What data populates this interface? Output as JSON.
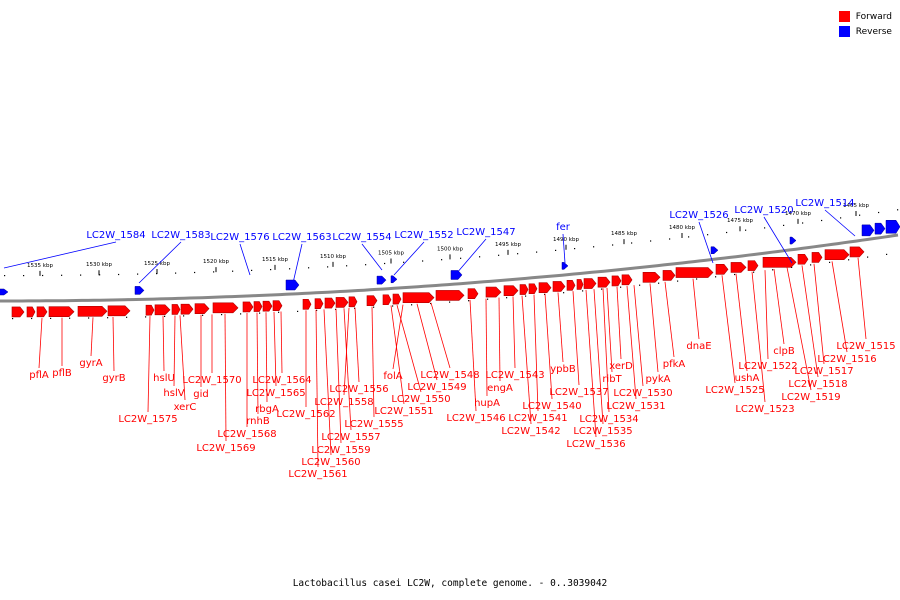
{
  "legend": {
    "forward_label": "Forward",
    "reverse_label": "Reverse",
    "forward_color": "#ff0000",
    "reverse_color": "#0000ff"
  },
  "caption": "Lactobacillus casei LC2W, complete genome. - 0..3039042",
  "ruler_ticks": [
    "1535 kbp",
    "1530 kbp",
    "1525 kbp",
    "1520 kbp",
    "1515 kbp",
    "1510 kbp",
    "1505 kbp",
    "1500 kbp",
    "1495 kbp",
    "1490 kbp",
    "1485 kbp",
    "1480 kbp",
    "1475 kbp",
    "1470 kbp",
    "1465 kbp"
  ],
  "reverse_genes": [
    "LC2W_1584",
    "LC2W_1583",
    "LC2W_1576",
    "LC2W_1563",
    "LC2W_1554",
    "LC2W_1552",
    "LC2W_1547",
    "fer",
    "LC2W_1526",
    "LC2W_1520",
    "LC2W_1514"
  ],
  "forward_genes": [
    "pflA",
    "pflB",
    "gyrA",
    "gyrB",
    "LC2W_1575",
    "hslU",
    "hslV",
    "xerC",
    "gid",
    "LC2W_1570",
    "LC2W_1569",
    "LC2W_1568",
    "rnhB",
    "rbgA",
    "LC2W_1565",
    "LC2W_1564",
    "LC2W_1562",
    "LC2W_1561",
    "LC2W_1560",
    "LC2W_1559",
    "LC2W_1557",
    "LC2W_1558",
    "LC2W_1556",
    "LC2W_1555",
    "LC2W_1551",
    "LC2W_1550",
    "folA",
    "LC2W_1549",
    "LC2W_1548",
    "LC2W_1546",
    "hupA",
    "engA",
    "LC2W_1543",
    "LC2W_1542",
    "LC2W_1541",
    "LC2W_1540",
    "ypbB",
    "LC2W_1537",
    "LC2W_1536",
    "LC2W_1535",
    "LC2W_1534",
    "ribT",
    "xerD",
    "LC2W_1531",
    "LC2W_1530",
    "pykA",
    "pfkA",
    "dnaE",
    "LC2W_1525",
    "ushA",
    "LC2W_1523",
    "LC2W_1522",
    "clpB",
    "LC2W_1519",
    "LC2W_1518",
    "LC2W_1517",
    "LC2W_1516",
    "LC2W_1515"
  ]
}
